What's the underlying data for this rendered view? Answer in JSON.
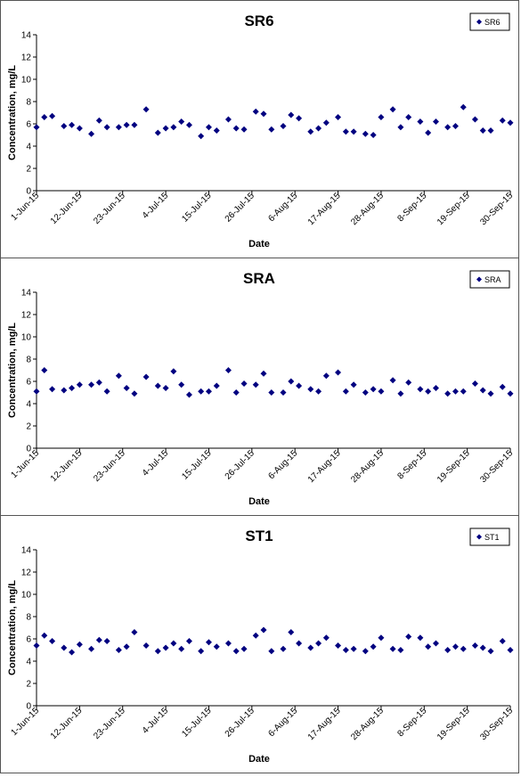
{
  "chart_data": [
    {
      "type": "scatter",
      "title": "SR6",
      "xlabel": "Date",
      "ylabel": "Concentration, mg/L",
      "ylim": [
        0,
        14
      ],
      "yticks": [
        0,
        2,
        4,
        6,
        8,
        10,
        12,
        14
      ],
      "xlim": [
        "2015-06-01",
        "2015-09-30"
      ],
      "xtick_labels": [
        "1-Jun-15",
        "12-Jun-15",
        "23-Jun-15",
        "4-Jul-15",
        "15-Jul-15",
        "26-Jul-15",
        "6-Aug-15",
        "17-Aug-15",
        "28-Aug-15",
        "8-Sep-15",
        "19-Sep-15",
        "30-Sep-15"
      ],
      "legend_position": "top-right",
      "marker_color": "#000080",
      "series": [
        {
          "name": "SR6",
          "points": [
            [
              "2015-06-01",
              5.7
            ],
            [
              "2015-06-03",
              6.6
            ],
            [
              "2015-06-05",
              6.7
            ],
            [
              "2015-06-08",
              5.8
            ],
            [
              "2015-06-10",
              5.9
            ],
            [
              "2015-06-12",
              5.6
            ],
            [
              "2015-06-15",
              5.1
            ],
            [
              "2015-06-17",
              6.3
            ],
            [
              "2015-06-19",
              5.7
            ],
            [
              "2015-06-22",
              5.7
            ],
            [
              "2015-06-24",
              5.9
            ],
            [
              "2015-06-26",
              5.9
            ],
            [
              "2015-06-29",
              7.3
            ],
            [
              "2015-07-02",
              5.2
            ],
            [
              "2015-07-04",
              5.6
            ],
            [
              "2015-07-06",
              5.7
            ],
            [
              "2015-07-08",
              6.2
            ],
            [
              "2015-07-10",
              5.9
            ],
            [
              "2015-07-13",
              4.9
            ],
            [
              "2015-07-15",
              5.7
            ],
            [
              "2015-07-17",
              5.4
            ],
            [
              "2015-07-20",
              6.4
            ],
            [
              "2015-07-22",
              5.6
            ],
            [
              "2015-07-24",
              5.5
            ],
            [
              "2015-07-27",
              7.1
            ],
            [
              "2015-07-29",
              6.9
            ],
            [
              "2015-07-31",
              5.5
            ],
            [
              "2015-08-03",
              5.8
            ],
            [
              "2015-08-05",
              6.8
            ],
            [
              "2015-08-07",
              6.5
            ],
            [
              "2015-08-10",
              5.3
            ],
            [
              "2015-08-12",
              5.6
            ],
            [
              "2015-08-14",
              6.1
            ],
            [
              "2015-08-17",
              6.6
            ],
            [
              "2015-08-19",
              5.3
            ],
            [
              "2015-08-21",
              5.3
            ],
            [
              "2015-08-24",
              5.1
            ],
            [
              "2015-08-26",
              5.0
            ],
            [
              "2015-08-28",
              6.6
            ],
            [
              "2015-08-31",
              7.3
            ],
            [
              "2015-09-02",
              5.7
            ],
            [
              "2015-09-04",
              6.6
            ],
            [
              "2015-09-07",
              6.2
            ],
            [
              "2015-09-09",
              5.2
            ],
            [
              "2015-09-11",
              6.2
            ],
            [
              "2015-09-14",
              5.7
            ],
            [
              "2015-09-16",
              5.8
            ],
            [
              "2015-09-18",
              7.5
            ],
            [
              "2015-09-21",
              6.4
            ],
            [
              "2015-09-23",
              5.4
            ],
            [
              "2015-09-25",
              5.4
            ],
            [
              "2015-09-28",
              6.3
            ],
            [
              "2015-09-30",
              6.1
            ]
          ]
        }
      ]
    },
    {
      "type": "scatter",
      "title": "SRA",
      "xlabel": "Date",
      "ylabel": "Concentration, mg/L",
      "ylim": [
        0,
        14
      ],
      "yticks": [
        0,
        2,
        4,
        6,
        8,
        10,
        12,
        14
      ],
      "xlim": [
        "2015-06-01",
        "2015-09-30"
      ],
      "xtick_labels": [
        "1-Jun-15",
        "12-Jun-15",
        "23-Jun-15",
        "4-Jul-15",
        "15-Jul-15",
        "26-Jul-15",
        "6-Aug-15",
        "17-Aug-15",
        "28-Aug-15",
        "8-Sep-15",
        "19-Sep-15",
        "30-Sep-15"
      ],
      "legend_position": "top-right",
      "marker_color": "#000080",
      "series": [
        {
          "name": "SRA",
          "points": [
            [
              "2015-06-01",
              5.1
            ],
            [
              "2015-06-03",
              7.0
            ],
            [
              "2015-06-05",
              5.3
            ],
            [
              "2015-06-08",
              5.2
            ],
            [
              "2015-06-10",
              5.4
            ],
            [
              "2015-06-12",
              5.7
            ],
            [
              "2015-06-15",
              5.7
            ],
            [
              "2015-06-17",
              5.9
            ],
            [
              "2015-06-19",
              5.1
            ],
            [
              "2015-06-22",
              6.5
            ],
            [
              "2015-06-24",
              5.4
            ],
            [
              "2015-06-26",
              4.9
            ],
            [
              "2015-06-29",
              6.4
            ],
            [
              "2015-07-02",
              5.6
            ],
            [
              "2015-07-04",
              5.4
            ],
            [
              "2015-07-06",
              6.9
            ],
            [
              "2015-07-08",
              5.7
            ],
            [
              "2015-07-10",
              4.8
            ],
            [
              "2015-07-13",
              5.1
            ],
            [
              "2015-07-15",
              5.1
            ],
            [
              "2015-07-17",
              5.6
            ],
            [
              "2015-07-20",
              7.0
            ],
            [
              "2015-07-22",
              5.0
            ],
            [
              "2015-07-24",
              5.8
            ],
            [
              "2015-07-27",
              5.7
            ],
            [
              "2015-07-29",
              6.7
            ],
            [
              "2015-07-31",
              5.0
            ],
            [
              "2015-08-03",
              5.0
            ],
            [
              "2015-08-05",
              6.0
            ],
            [
              "2015-08-07",
              5.6
            ],
            [
              "2015-08-10",
              5.3
            ],
            [
              "2015-08-12",
              5.1
            ],
            [
              "2015-08-14",
              6.5
            ],
            [
              "2015-08-17",
              6.8
            ],
            [
              "2015-08-19",
              5.1
            ],
            [
              "2015-08-21",
              5.7
            ],
            [
              "2015-08-24",
              5.0
            ],
            [
              "2015-08-26",
              5.3
            ],
            [
              "2015-08-28",
              5.1
            ],
            [
              "2015-08-31",
              6.1
            ],
            [
              "2015-09-02",
              4.9
            ],
            [
              "2015-09-04",
              5.9
            ],
            [
              "2015-09-07",
              5.3
            ],
            [
              "2015-09-09",
              5.1
            ],
            [
              "2015-09-11",
              5.4
            ],
            [
              "2015-09-14",
              4.9
            ],
            [
              "2015-09-16",
              5.1
            ],
            [
              "2015-09-18",
              5.1
            ],
            [
              "2015-09-21",
              5.8
            ],
            [
              "2015-09-23",
              5.2
            ],
            [
              "2015-09-25",
              4.9
            ],
            [
              "2015-09-28",
              5.5
            ],
            [
              "2015-09-30",
              4.9
            ]
          ]
        }
      ]
    },
    {
      "type": "scatter",
      "title": "ST1",
      "xlabel": "Date",
      "ylabel": "Concentration, mg/L",
      "ylim": [
        0,
        14
      ],
      "yticks": [
        0,
        2,
        4,
        6,
        8,
        10,
        12,
        14
      ],
      "xlim": [
        "2015-06-01",
        "2015-09-30"
      ],
      "xtick_labels": [
        "1-Jun-15",
        "12-Jun-15",
        "23-Jun-15",
        "4-Jul-15",
        "15-Jul-15",
        "26-Jul-15",
        "6-Aug-15",
        "17-Aug-15",
        "28-Aug-15",
        "8-Sep-15",
        "19-Sep-15",
        "30-Sep-15"
      ],
      "legend_position": "top-right",
      "marker_color": "#000080",
      "series": [
        {
          "name": "ST1",
          "points": [
            [
              "2015-06-01",
              5.4
            ],
            [
              "2015-06-03",
              6.3
            ],
            [
              "2015-06-05",
              5.8
            ],
            [
              "2015-06-08",
              5.2
            ],
            [
              "2015-06-10",
              4.8
            ],
            [
              "2015-06-12",
              5.5
            ],
            [
              "2015-06-15",
              5.1
            ],
            [
              "2015-06-17",
              5.9
            ],
            [
              "2015-06-19",
              5.8
            ],
            [
              "2015-06-22",
              5.0
            ],
            [
              "2015-06-24",
              5.3
            ],
            [
              "2015-06-26",
              6.6
            ],
            [
              "2015-06-29",
              5.4
            ],
            [
              "2015-07-02",
              4.9
            ],
            [
              "2015-07-04",
              5.2
            ],
            [
              "2015-07-06",
              5.6
            ],
            [
              "2015-07-08",
              5.1
            ],
            [
              "2015-07-10",
              5.8
            ],
            [
              "2015-07-13",
              4.9
            ],
            [
              "2015-07-15",
              5.7
            ],
            [
              "2015-07-17",
              5.3
            ],
            [
              "2015-07-20",
              5.6
            ],
            [
              "2015-07-22",
              4.9
            ],
            [
              "2015-07-24",
              5.1
            ],
            [
              "2015-07-27",
              6.3
            ],
            [
              "2015-07-29",
              6.8
            ],
            [
              "2015-07-31",
              4.9
            ],
            [
              "2015-08-03",
              5.1
            ],
            [
              "2015-08-05",
              6.6
            ],
            [
              "2015-08-07",
              5.6
            ],
            [
              "2015-08-10",
              5.2
            ],
            [
              "2015-08-12",
              5.6
            ],
            [
              "2015-08-14",
              6.1
            ],
            [
              "2015-08-17",
              5.4
            ],
            [
              "2015-08-19",
              5.0
            ],
            [
              "2015-08-21",
              5.1
            ],
            [
              "2015-08-24",
              4.9
            ],
            [
              "2015-08-26",
              5.3
            ],
            [
              "2015-08-28",
              6.1
            ],
            [
              "2015-08-31",
              5.1
            ],
            [
              "2015-09-02",
              5.0
            ],
            [
              "2015-09-04",
              6.2
            ],
            [
              "2015-09-07",
              6.1
            ],
            [
              "2015-09-09",
              5.3
            ],
            [
              "2015-09-11",
              5.6
            ],
            [
              "2015-09-14",
              5.0
            ],
            [
              "2015-09-16",
              5.3
            ],
            [
              "2015-09-18",
              5.1
            ],
            [
              "2015-09-21",
              5.4
            ],
            [
              "2015-09-23",
              5.2
            ],
            [
              "2015-09-25",
              4.9
            ],
            [
              "2015-09-28",
              5.8
            ],
            [
              "2015-09-30",
              5.0
            ]
          ]
        }
      ]
    }
  ]
}
